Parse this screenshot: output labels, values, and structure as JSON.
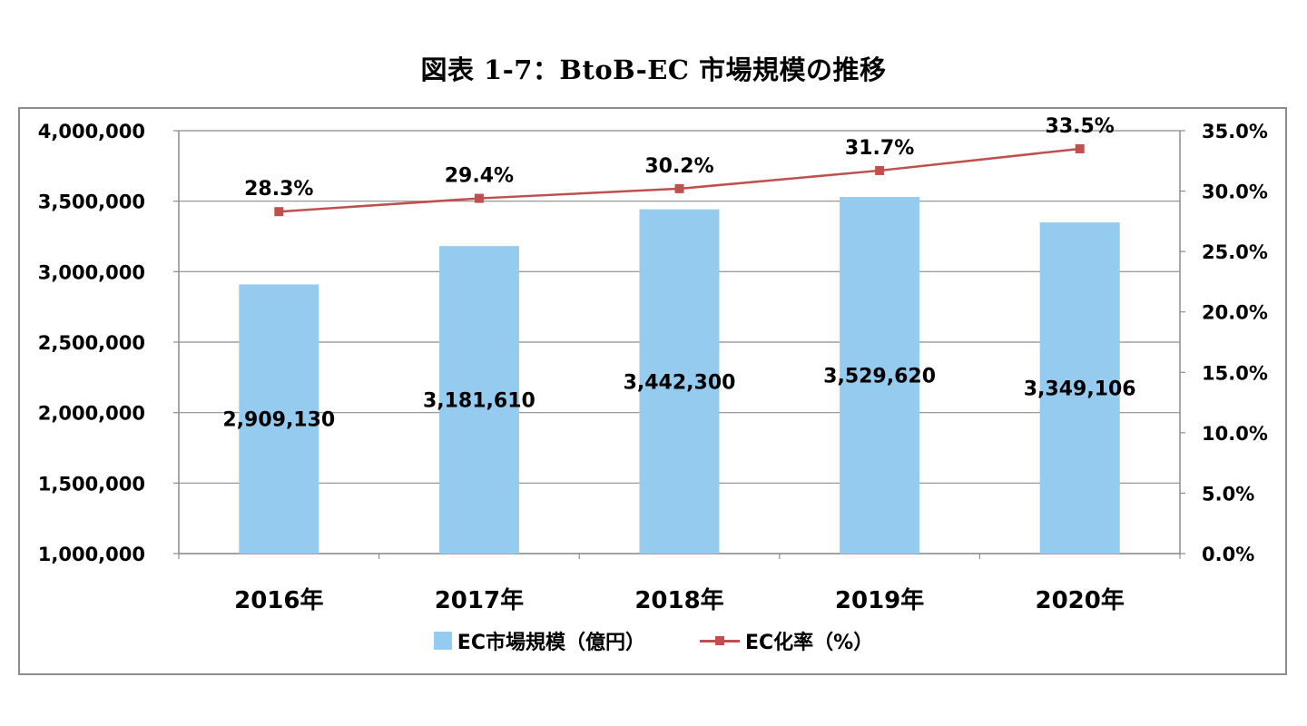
{
  "title": "図表 1-7：BtoB-EC 市場規模の推移",
  "colors": {
    "bar": "#95CBEE",
    "line": "#C0504D",
    "grid": "#8C8C8C",
    "frame": "#8C8C8C"
  },
  "chart_data": {
    "type": "bar",
    "title": "図表 1-7：BtoB-EC 市場規模の推移",
    "categories": [
      "2016年",
      "2017年",
      "2018年",
      "2019年",
      "2020年"
    ],
    "series": [
      {
        "name": "EC市場規模（億円）",
        "type": "bar",
        "axis": "left",
        "values": [
          2909130,
          3181610,
          3442300,
          3529620,
          3349106
        ],
        "labels": [
          "2,909,130",
          "3,181,610",
          "3,442,300",
          "3,529,620",
          "3,349,106"
        ]
      },
      {
        "name": "EC化率（%）",
        "type": "line",
        "axis": "right",
        "values": [
          28.3,
          29.4,
          30.2,
          31.7,
          33.5
        ],
        "labels": [
          "28.3%",
          "29.4%",
          "30.2%",
          "31.7%",
          "33.5%"
        ]
      }
    ],
    "y_left": {
      "range": [
        1000000,
        4000000
      ],
      "ticks": [
        "1,000,000",
        "1,500,000",
        "2,000,000",
        "2,500,000",
        "3,000,000",
        "3,500,000",
        "4,000,000"
      ]
    },
    "y_right": {
      "range": [
        0,
        35
      ],
      "ticks": [
        "0.0%",
        "5.0%",
        "10.0%",
        "15.0%",
        "20.0%",
        "25.0%",
        "30.0%",
        "35.0%"
      ]
    },
    "grid": true,
    "legend": "bottom"
  }
}
